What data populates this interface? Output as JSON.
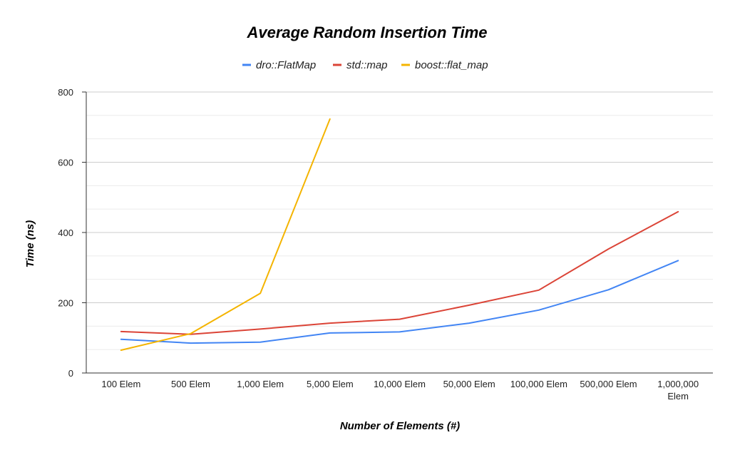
{
  "chart_data": {
    "type": "line",
    "title": "Average Random Insertion Time",
    "xlabel": "Number of Elements (#)",
    "ylabel": "Time (ns)",
    "ylim": [
      0,
      800
    ],
    "yticks": [
      0,
      200,
      400,
      600,
      800
    ],
    "grid": true,
    "legend_position": "top",
    "categories": [
      "100 Elem",
      "500 Elem",
      "1,000 Elem",
      "5,000 Elem",
      "10,000 Elem",
      "50,000 Elem",
      "100,000 Elem",
      "500,000 Elem",
      "1,000,000 Elem"
    ],
    "series": [
      {
        "name": "dro::FlatMap",
        "color": "#4285f4",
        "values": [
          96,
          85,
          88,
          114,
          117,
          142,
          179,
          237,
          320
        ]
      },
      {
        "name": "std::map",
        "color": "#db4437",
        "values": [
          118,
          110,
          125,
          142,
          153,
          193,
          236,
          353,
          459
        ]
      },
      {
        "name": "boost::flat_map",
        "color": "#f4b400",
        "values": [
          65,
          112,
          227,
          723,
          null,
          null,
          null,
          null,
          null
        ]
      }
    ]
  }
}
